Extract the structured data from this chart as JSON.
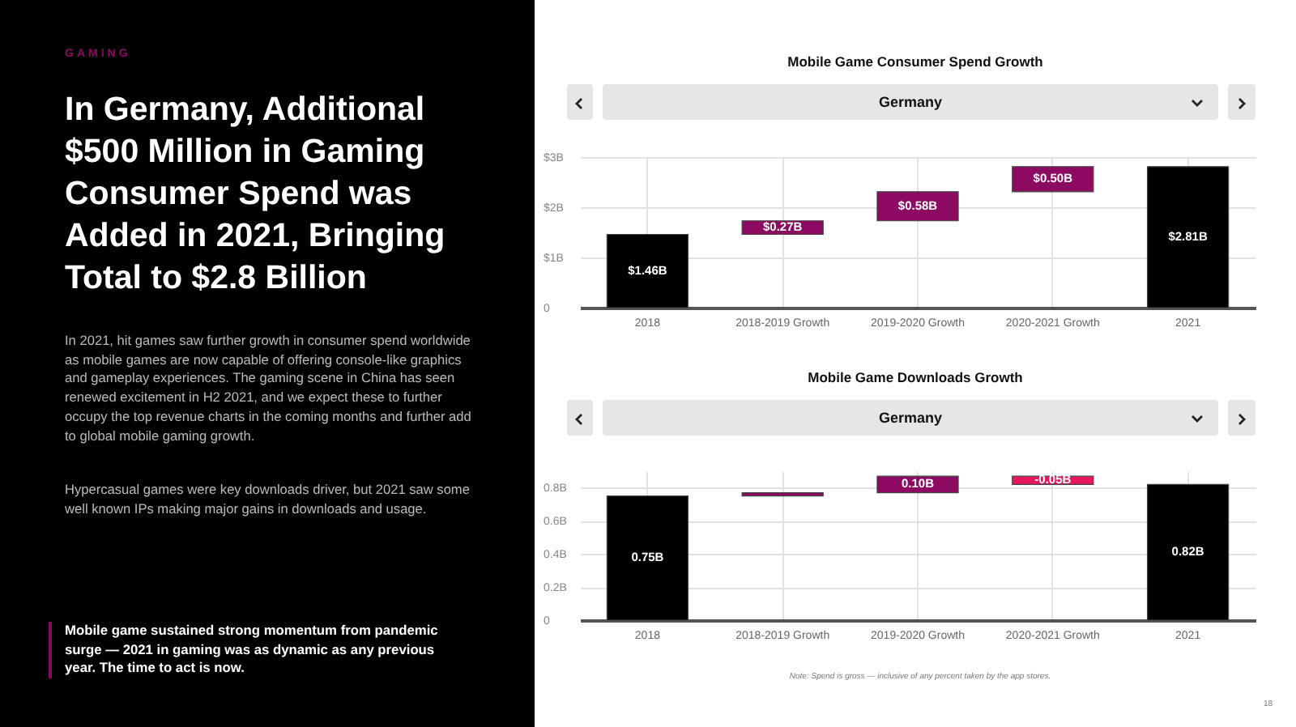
{
  "chart_data": [
    {
      "type": "other",
      "subtitle": "GAMING",
      "title": "In Germany, Additional $500 Million in Gaming Consumer Spend was Added in 2021, Bringing Total to $2.8 Billion",
      "annotations": [
        "In 2021, hit games saw further growth in consumer spend worldwide as mobile games are now capable of offering console-like graphics and gameplay experiences. The gaming scene in China has seen renewed excitement in H2 2021, and we expect these to further occupy the top revenue charts in the coming months and further add to global mobile gaming growth.",
        "Hypercasual games were key downloads driver, but 2021 saw some well known IPs making major gains in downloads and usage.",
        "Mobile game sustained strong momentum from pandemic surge — 2021 in gaming was as dynamic as any previous year. The time to act is now."
      ]
    },
    {
      "type": "bar",
      "title": "Mobile Game Consumer Spend Growth",
      "subtitle": "Germany",
      "categories": [
        "2018",
        "2018-2019 Growth",
        "2019-2020 Growth",
        "2020-2021 Growth",
        "2021"
      ],
      "values": [
        1.46,
        0.27,
        0.58,
        0.5,
        2.81
      ],
      "base": [
        0,
        1.46,
        1.73,
        2.31,
        0
      ],
      "colors": [
        "#000000",
        "#8c0a62",
        "#8c0a62",
        "#8c0a62",
        "#000000"
      ],
      "value_labels": [
        "$1.46B",
        "$0.27B",
        "$0.58B",
        "$0.50B",
        "$2.81B"
      ],
      "ylim": [
        0,
        3
      ],
      "yticks": [
        0,
        {
          "value": 1,
          "label": "$1B"
        },
        {
          "value": 2,
          "label": "$2B"
        },
        {
          "value": 3,
          "label": "$3B"
        }
      ],
      "grid": true
    },
    {
      "type": "bar",
      "title": "Mobile Game Downloads Growth",
      "subtitle": "Germany",
      "categories": [
        "2018",
        "2018-2019 Growth",
        "2019-2020 Growth",
        "2020-2021 Growth",
        "2021"
      ],
      "values": [
        0.75,
        0.02,
        0.1,
        -0.05,
        0.82
      ],
      "base": [
        0,
        0.75,
        0.77,
        0.87,
        0
      ],
      "colors": [
        "#000000",
        "#8c0a62",
        "#8c0a62",
        "#e8175d",
        "#000000"
      ],
      "value_labels": [
        "0.75B",
        null,
        "0.10B",
        "-0.05B",
        "0.82B"
      ],
      "ylim": [
        0,
        0.9
      ],
      "yticks": [
        0,
        {
          "value": 0.2,
          "label": "0.2B"
        },
        {
          "value": 0.4,
          "label": "0.4B"
        },
        {
          "value": 0.6,
          "label": "0.6B"
        },
        {
          "value": 0.8,
          "label": "0.8B"
        }
      ],
      "grid": true,
      "annotations": [
        "Note: Spend is gross — inclusive of any percent taken by the app stores.",
        "18"
      ]
    }
  ]
}
